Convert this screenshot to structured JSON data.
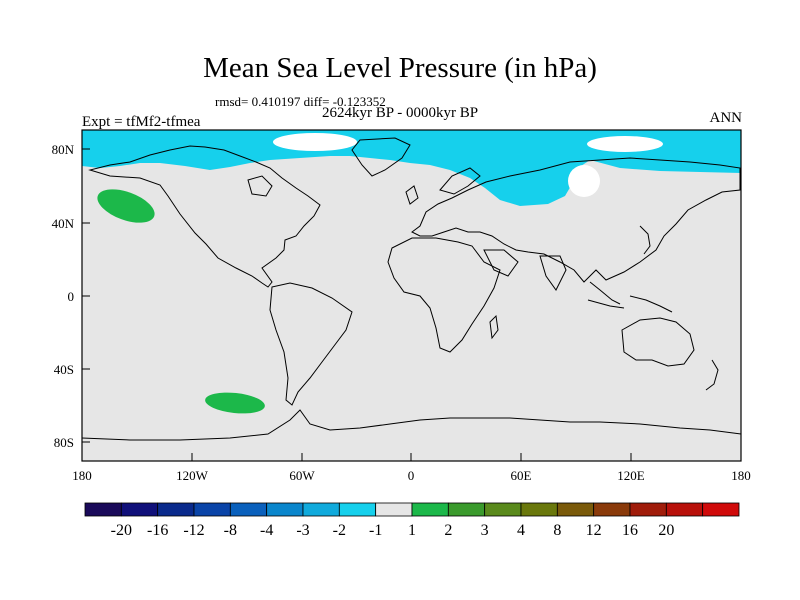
{
  "title": "Mean Sea Level Pressure (in hPa)",
  "stats": "rmsd= 0.410197 diff= -0.123352",
  "period": "2624kyr BP - 0000kyr BP",
  "experiment": "Expt = tfMf2-tfmea",
  "season": "ANN",
  "lat_labels": [
    "80N",
    "40N",
    "0",
    "40S",
    "80S"
  ],
  "lon_labels": [
    "180",
    "120W",
    "60W",
    "0",
    "60E",
    "120E",
    "180"
  ],
  "colorbar": {
    "colors": [
      "#1a0a5a",
      "#10107a",
      "#0a2a8c",
      "#0a44a8",
      "#0a60bc",
      "#0a86cc",
      "#10aadc",
      "#16d0ec",
      "#e6e6e6",
      "#1cb84a",
      "#3a9a2c",
      "#5a8a1c",
      "#6a780c",
      "#7a5a0a",
      "#8a3a0a",
      "#a01c0a",
      "#b8100a",
      "#d00a0a"
    ],
    "labels": [
      "-20",
      "-16",
      "-12",
      "-8",
      "-4",
      "-3",
      "-2",
      "-1",
      "1",
      "2",
      "3",
      "4",
      "8",
      "12",
      "16",
      "20"
    ]
  },
  "colors": {
    "land_sea_background": "#e6e6e6",
    "negative_anomaly": "#16d0ec",
    "positive_anomaly": "#1cb84a",
    "coastline": "#000000"
  }
}
